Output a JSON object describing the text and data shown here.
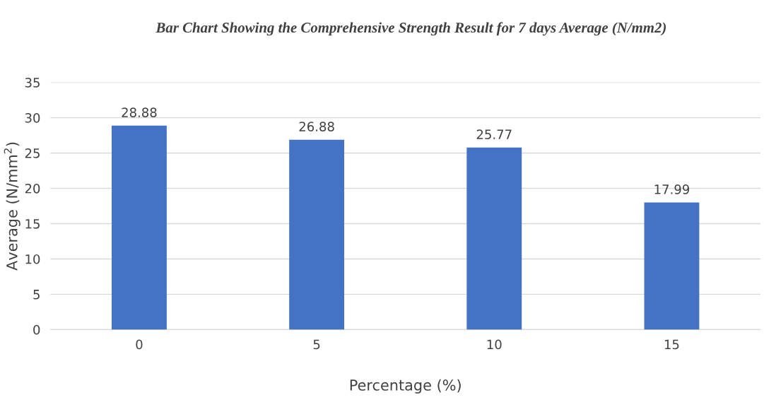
{
  "chart_data": {
    "type": "bar",
    "title": "Bar Chart Showing the Comprehensive Strength Result for 7 days Average (N/mm2)",
    "xlabel": "Percentage (%)",
    "ylabel": "Average (N/mm$^{2}$)",
    "categories": [
      "0",
      "5",
      "10",
      "15"
    ],
    "values": [
      28.88,
      26.88,
      25.77,
      17.99
    ],
    "color": "#4472c4",
    "ylim": [
      0,
      35
    ],
    "yticks": [
      0,
      5,
      10,
      15,
      20,
      25,
      30,
      35
    ],
    "grid": "y",
    "data_labels": true
  }
}
